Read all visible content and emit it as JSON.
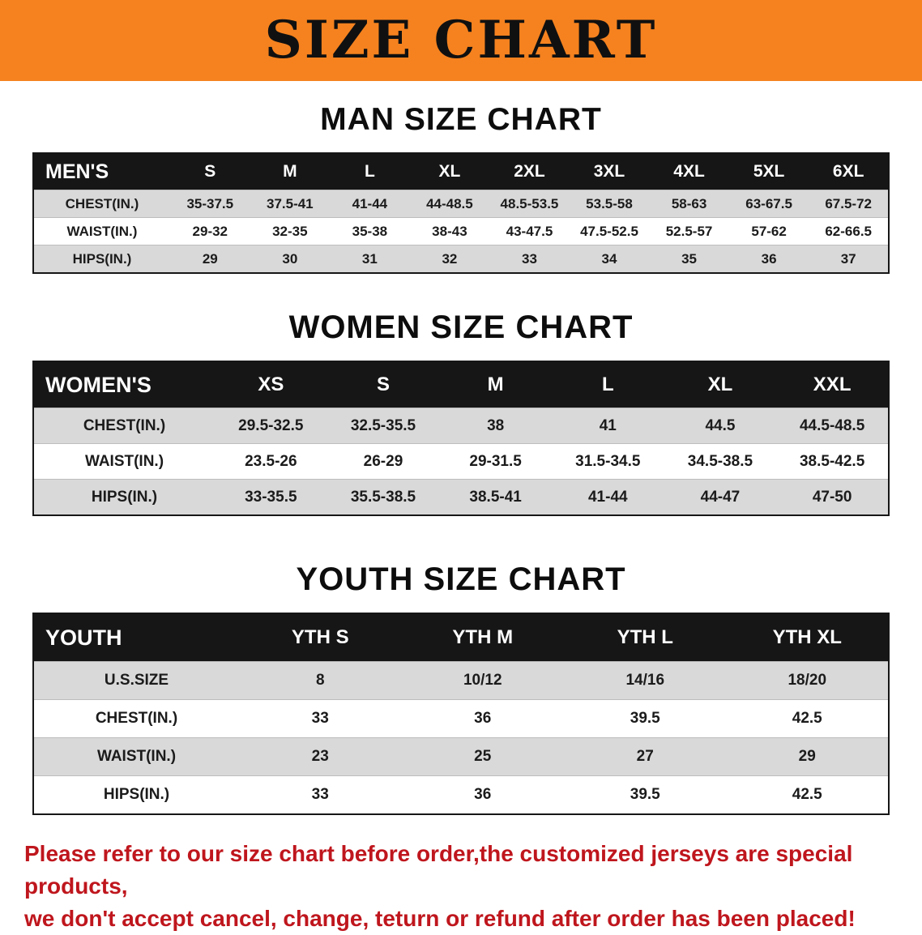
{
  "banner": {
    "title": "SIZE CHART"
  },
  "colors": {
    "banner_bg": "#f5821f",
    "table_header_bg": "#161616",
    "row_alt_bg": "#d9d9d9",
    "disclaimer_text": "#bf161d"
  },
  "sections": [
    {
      "heading": "MAN SIZE CHART",
      "table": {
        "header": [
          "MEN'S",
          "S",
          "M",
          "L",
          "XL",
          "2XL",
          "3XL",
          "4XL",
          "5XL",
          "6XL"
        ],
        "rows": [
          [
            "CHEST(IN.)",
            "35-37.5",
            "37.5-41",
            "41-44",
            "44-48.5",
            "48.5-53.5",
            "53.5-58",
            "58-63",
            "63-67.5",
            "67.5-72"
          ],
          [
            "WAIST(IN.)",
            "29-32",
            "32-35",
            "35-38",
            "38-43",
            "43-47.5",
            "47.5-52.5",
            "52.5-57",
            "57-62",
            "62-66.5"
          ],
          [
            "HIPS(IN.)",
            "29",
            "30",
            "31",
            "32",
            "33",
            "34",
            "35",
            "36",
            "37"
          ]
        ]
      }
    },
    {
      "heading": "WOMEN SIZE CHART",
      "table": {
        "header": [
          "WOMEN'S",
          "XS",
          "S",
          "M",
          "L",
          "XL",
          "XXL"
        ],
        "rows": [
          [
            "CHEST(IN.)",
            "29.5-32.5",
            "32.5-35.5",
            "38",
            "41",
            "44.5",
            "44.5-48.5"
          ],
          [
            "WAIST(IN.)",
            "23.5-26",
            "26-29",
            "29-31.5",
            "31.5-34.5",
            "34.5-38.5",
            "38.5-42.5"
          ],
          [
            "HIPS(IN.)",
            "33-35.5",
            "35.5-38.5",
            "38.5-41",
            "41-44",
            "44-47",
            "47-50"
          ]
        ]
      }
    },
    {
      "heading": "YOUTH SIZE CHART",
      "table": {
        "header": [
          "YOUTH",
          "YTH S",
          "YTH M",
          "YTH L",
          "YTH XL"
        ],
        "rows": [
          [
            "U.S.SIZE",
            "8",
            "10/12",
            "14/16",
            "18/20"
          ],
          [
            "CHEST(IN.)",
            "33",
            "36",
            "39.5",
            "42.5"
          ],
          [
            "WAIST(IN.)",
            "23",
            "25",
            "27",
            "29"
          ],
          [
            "HIPS(IN.)",
            "33",
            "36",
            "39.5",
            "42.5"
          ]
        ]
      }
    }
  ],
  "disclaimer": {
    "line1": "Please refer to our size chart before order,the customized jerseys are special products,",
    "line2": "we don't accept cancel, change, teturn or refund after order has been placed!"
  }
}
